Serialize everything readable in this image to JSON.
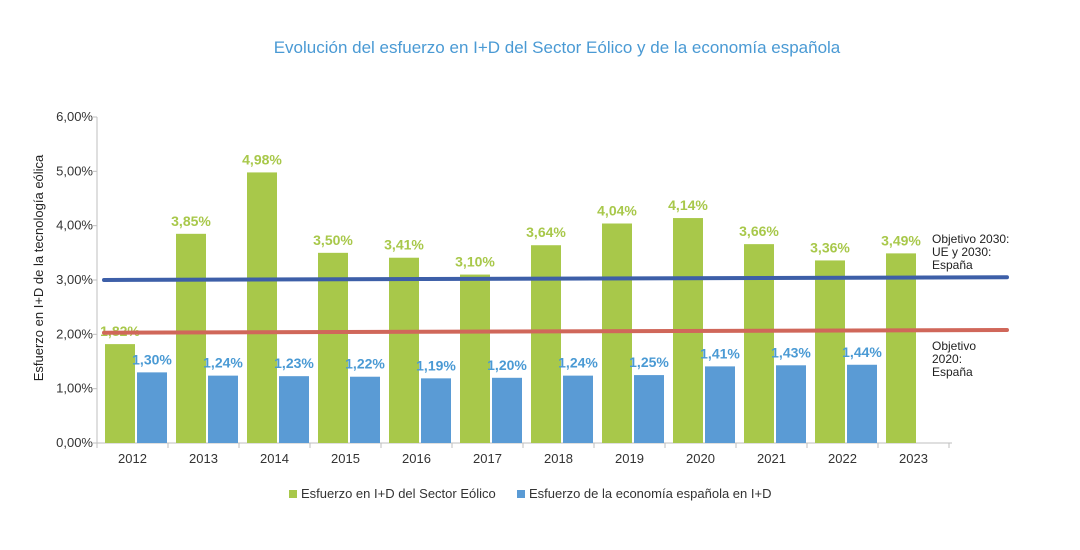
{
  "chart_data": {
    "type": "bar",
    "title": "Evolución del esfuerzo en I+D del Sector Eólico y de la economía española",
    "ylabel": "Esfuerzo en I+D de la tecnología eólica",
    "xlabel": "",
    "ylim": [
      0,
      6
    ],
    "yticks": [
      0,
      1,
      2,
      3,
      4,
      5,
      6
    ],
    "ytick_labels": [
      "0,00%",
      "1,00%",
      "2,00%",
      "3,00%",
      "4,00%",
      "5,00%",
      "6,00%"
    ],
    "categories": [
      "2012",
      "2013",
      "2014",
      "2015",
      "2016",
      "2017",
      "2018",
      "2019",
      "2020",
      "2021",
      "2022",
      "2023"
    ],
    "series": [
      {
        "name": "Esfuerzo en I+D del Sector Eólico",
        "color": "#a8c84a",
        "values": [
          1.82,
          3.85,
          4.98,
          3.5,
          3.41,
          3.1,
          3.64,
          4.04,
          4.14,
          3.66,
          3.36,
          3.49
        ],
        "labels": [
          "1,82%",
          "3,85%",
          "4,98%",
          "3,50%",
          "3,41%",
          "3,10%",
          "3,64%",
          "4,04%",
          "4,14%",
          "3,66%",
          "3,36%",
          "3,49%"
        ]
      },
      {
        "name": "Esfuerzo de la economía española en I+D",
        "color": "#5a9bd5",
        "values": [
          1.3,
          1.24,
          1.23,
          1.22,
          1.19,
          1.2,
          1.24,
          1.25,
          1.41,
          1.43,
          1.44,
          null
        ],
        "labels": [
          "1,30%",
          "1,24%",
          "1,23%",
          "1,22%",
          "1,19%",
          "1,20%",
          "1,24%",
          "1,25%",
          "1,41%",
          "1,43%",
          "1,44%",
          ""
        ]
      }
    ],
    "reference_lines": [
      {
        "color": "#3d5fa8",
        "start": 3.0,
        "end": 3.05,
        "label_lines": [
          "Objetivo 2030:",
          "UE y 2030:",
          "España"
        ]
      },
      {
        "color": "#d0675a",
        "start": 2.03,
        "end": 2.08,
        "label_lines": [
          "Objetivo",
          "2020:",
          "España"
        ]
      }
    ],
    "legend_position": "bottom",
    "grid": false
  }
}
